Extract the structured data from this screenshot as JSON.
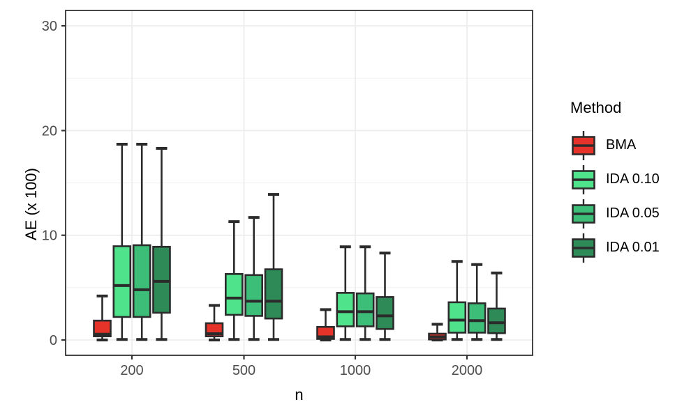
{
  "chart_data": {
    "type": "boxplot",
    "title": "",
    "xlabel": "n",
    "ylabel": "AE (x 100)",
    "x_categories": [
      "200",
      "500",
      "1000",
      "2000"
    ],
    "y_ticks": [
      0,
      10,
      20,
      30
    ],
    "y_minor_ticks": [
      5,
      15,
      25
    ],
    "ylim": [
      -1.5,
      31.5
    ],
    "grid": "on",
    "legend": {
      "title": "Method",
      "position": "right"
    },
    "colors": {
      "box_stroke": "#2b2b2b",
      "panel_border": "#333333",
      "gridline_major": "#ebebeb",
      "gridline_minor": "#f1f1f1",
      "tick_label": "#4d4d4d",
      "axis_title": "#000000"
    },
    "series": [
      {
        "name": "BMA",
        "fill": "#e63329",
        "boxes": [
          {
            "whislo": 0.0,
            "q1": 0.35,
            "med": 0.55,
            "q3": 1.85,
            "whishi": 4.2
          },
          {
            "whislo": 0.0,
            "q1": 0.35,
            "med": 0.6,
            "q3": 1.6,
            "whishi": 3.3
          },
          {
            "whislo": 0.0,
            "q1": 0.1,
            "med": 0.3,
            "q3": 1.25,
            "whishi": 2.9
          },
          {
            "whislo": 0.0,
            "q1": 0.05,
            "med": 0.3,
            "q3": 0.6,
            "whishi": 1.5
          }
        ]
      },
      {
        "name": "IDA 0.10",
        "fill": "#4fe38c",
        "boxes": [
          {
            "whislo": 0.05,
            "q1": 2.2,
            "med": 5.2,
            "q3": 8.95,
            "whishi": 18.7
          },
          {
            "whislo": 0.05,
            "q1": 2.4,
            "med": 4.0,
            "q3": 6.3,
            "whishi": 11.3
          },
          {
            "whislo": 0.05,
            "q1": 1.3,
            "med": 2.7,
            "q3": 4.5,
            "whishi": 8.9
          },
          {
            "whislo": 0.05,
            "q1": 0.7,
            "med": 1.9,
            "q3": 3.6,
            "whishi": 7.5
          }
        ]
      },
      {
        "name": "IDA 0.05",
        "fill": "#3cbe78",
        "boxes": [
          {
            "whislo": 0.05,
            "q1": 2.2,
            "med": 4.8,
            "q3": 9.05,
            "whishi": 18.7
          },
          {
            "whislo": 0.05,
            "q1": 2.3,
            "med": 3.7,
            "q3": 6.2,
            "whishi": 11.7
          },
          {
            "whislo": 0.05,
            "q1": 1.3,
            "med": 2.7,
            "q3": 4.45,
            "whishi": 8.9
          },
          {
            "whislo": 0.05,
            "q1": 0.7,
            "med": 1.85,
            "q3": 3.5,
            "whishi": 7.2
          }
        ]
      },
      {
        "name": "IDA 0.01",
        "fill": "#2e8b57",
        "boxes": [
          {
            "whislo": 0.05,
            "q1": 2.6,
            "med": 5.6,
            "q3": 8.9,
            "whishi": 18.3
          },
          {
            "whislo": 0.05,
            "q1": 2.05,
            "med": 3.7,
            "q3": 6.75,
            "whishi": 13.9
          },
          {
            "whislo": 0.05,
            "q1": 1.05,
            "med": 2.3,
            "q3": 4.1,
            "whishi": 8.3
          },
          {
            "whislo": 0.05,
            "q1": 0.65,
            "med": 1.65,
            "q3": 3.0,
            "whishi": 6.4
          }
        ]
      }
    ]
  }
}
